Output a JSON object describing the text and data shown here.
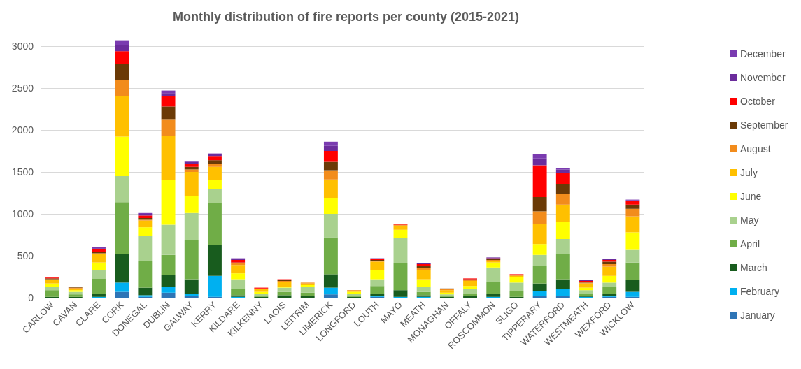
{
  "chart_data": {
    "type": "bar",
    "stacked": true,
    "title": "Monthly distribution of fire reports per county (2015-2021)",
    "categories": [
      "CARLOW",
      "CAVAN",
      "CLARE",
      "CORK",
      "DONEGAL",
      "DUBLIN",
      "GALWAY",
      "KERRY",
      "KILDARE",
      "KILKENNY",
      "LAOIS",
      "LEITRIM",
      "LIMERICK",
      "LONGFORD",
      "LOUTH",
      "MAYO",
      "MEATH",
      "MONAGHAN",
      "OFFALY",
      "ROSCOMMON",
      "SLIGO",
      "TIPPERARY",
      "WATERFORD",
      "WESTMEATH",
      "WEXFORD",
      "WICKLOW"
    ],
    "series": [
      {
        "name": "January",
        "color": "#2e75b6",
        "values": [
          null,
          null,
          null,
          70,
          10,
          60,
          20,
          10,
          null,
          null,
          null,
          null,
          40,
          null,
          10,
          null,
          null,
          null,
          null,
          null,
          null,
          20,
          20,
          null,
          10,
          10
        ]
      },
      {
        "name": "February",
        "color": "#00b0f0",
        "values": [
          null,
          null,
          10,
          110,
          20,
          70,
          30,
          250,
          10,
          null,
          null,
          null,
          80,
          null,
          10,
          10,
          10,
          null,
          null,
          10,
          null,
          60,
          80,
          10,
          10,
          60
        ]
      },
      {
        "name": "March",
        "color": "#185c1e",
        "values": [
          10,
          10,
          40,
          340,
          90,
          140,
          170,
          370,
          20,
          10,
          30,
          20,
          160,
          10,
          30,
          80,
          20,
          10,
          20,
          40,
          10,
          90,
          120,
          10,
          30,
          140
        ]
      },
      {
        "name": "April",
        "color": "#70ad47",
        "values": [
          80,
          30,
          180,
          620,
          320,
          240,
          470,
          500,
          70,
          20,
          40,
          40,
          440,
          20,
          90,
          320,
          40,
          10,
          30,
          140,
          70,
          210,
          300,
          30,
          80,
          210
        ]
      },
      {
        "name": "May",
        "color": "#a9d18e",
        "values": [
          40,
          30,
          100,
          310,
          300,
          360,
          320,
          170,
          120,
          20,
          50,
          70,
          280,
          20,
          80,
          300,
          60,
          20,
          50,
          170,
          100,
          130,
          180,
          40,
          50,
          150
        ]
      },
      {
        "name": "June",
        "color": "#ffff00",
        "values": [
          40,
          20,
          90,
          470,
          100,
          530,
          200,
          100,
          70,
          20,
          10,
          20,
          190,
          20,
          110,
          100,
          90,
          20,
          40,
          60,
          70,
          130,
          200,
          30,
          80,
          210
        ]
      },
      {
        "name": "July",
        "color": "#ffc000",
        "values": [
          50,
          20,
          100,
          480,
          80,
          530,
          290,
          160,
          100,
          30,
          60,
          20,
          220,
          10,
          100,
          50,
          110,
          30,
          60,
          20,
          10,
          240,
          210,
          50,
          110,
          190
        ]
      },
      {
        "name": "August",
        "color": "#f28c1c",
        "values": [
          null,
          10,
          10,
          200,
          10,
          200,
          30,
          40,
          20,
          10,
          10,
          10,
          110,
          10,
          10,
          10,
          20,
          10,
          10,
          10,
          10,
          150,
          130,
          10,
          30,
          90
        ]
      },
      {
        "name": "September",
        "color": "#6b3a06",
        "values": [
          10,
          10,
          20,
          190,
          20,
          150,
          30,
          40,
          10,
          null,
          10,
          null,
          100,
          null,
          10,
          null,
          30,
          10,
          10,
          10,
          null,
          170,
          110,
          10,
          30,
          50
        ]
      },
      {
        "name": "October",
        "color": "#ff0000",
        "values": [
          10,
          null,
          30,
          150,
          30,
          120,
          40,
          50,
          30,
          10,
          10,
          null,
          130,
          null,
          10,
          10,
          20,
          null,
          10,
          10,
          10,
          380,
          140,
          10,
          20,
          40
        ]
      },
      {
        "name": "November",
        "color": "#6b2c9c",
        "values": [
          null,
          null,
          10,
          70,
          20,
          40,
          20,
          20,
          10,
          null,
          null,
          null,
          60,
          null,
          10,
          null,
          10,
          null,
          null,
          10,
          null,
          80,
          40,
          10,
          10,
          10
        ]
      },
      {
        "name": "December",
        "color": "#7a3bb0",
        "values": [
          null,
          null,
          10,
          60,
          10,
          30,
          10,
          10,
          10,
          null,
          null,
          null,
          50,
          null,
          null,
          null,
          null,
          null,
          null,
          null,
          null,
          50,
          20,
          null,
          null,
          10
        ]
      }
    ],
    "ylim": [
      0,
      3100
    ],
    "yticks": [
      0,
      500,
      1000,
      1500,
      2000,
      2500,
      3000
    ],
    "grid": "y",
    "legend": "right"
  }
}
